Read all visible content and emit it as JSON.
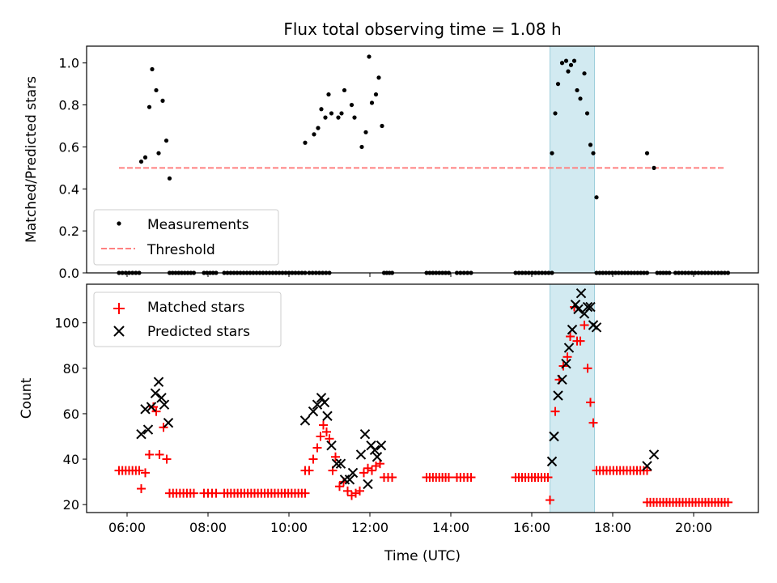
{
  "title": "Flux total observing time = 1.08 h",
  "highlight_color": "#add8e6",
  "chart_data": [
    {
      "type": "scatter",
      "ylabel": "Matched/Predicted stars",
      "xlim_hours": [
        5.0,
        21.6
      ],
      "ylim": [
        0,
        1.08
      ],
      "yticks": [
        "0.0",
        "0.2",
        "0.4",
        "0.6",
        "0.8",
        "1.0"
      ],
      "highlight_span_hours": [
        16.45,
        17.55
      ],
      "legend": {
        "placement": "lower left",
        "entries": [
          "Measurements",
          "Threshold"
        ]
      },
      "threshold": {
        "name": "Threshold",
        "value": 0.5,
        "x_range_hours": [
          5.8,
          20.8
        ],
        "color": "#ff8080"
      },
      "measurements": {
        "name": "Measurements",
        "color": "#000000",
        "points": [
          [
            6.35,
            0.53
          ],
          [
            6.45,
            0.55
          ],
          [
            6.55,
            0.79
          ],
          [
            6.62,
            0.97
          ],
          [
            6.72,
            0.87
          ],
          [
            6.78,
            0.57
          ],
          [
            6.88,
            0.82
          ],
          [
            6.97,
            0.63
          ],
          [
            7.05,
            0.45
          ],
          [
            10.4,
            0.62
          ],
          [
            10.62,
            0.66
          ],
          [
            10.72,
            0.69
          ],
          [
            10.8,
            0.78
          ],
          [
            10.9,
            0.74
          ],
          [
            10.98,
            0.85
          ],
          [
            11.05,
            0.76
          ],
          [
            11.22,
            0.74
          ],
          [
            11.3,
            0.76
          ],
          [
            11.37,
            0.87
          ],
          [
            11.55,
            0.8
          ],
          [
            11.62,
            0.74
          ],
          [
            11.8,
            0.6
          ],
          [
            11.9,
            0.67
          ],
          [
            11.98,
            1.03
          ],
          [
            12.05,
            0.81
          ],
          [
            12.15,
            0.85
          ],
          [
            12.22,
            0.93
          ],
          [
            12.3,
            0.7
          ],
          [
            16.5,
            0.57
          ],
          [
            16.58,
            0.76
          ],
          [
            16.65,
            0.9
          ],
          [
            16.75,
            1.0
          ],
          [
            16.85,
            1.01
          ],
          [
            16.9,
            0.96
          ],
          [
            16.97,
            0.99
          ],
          [
            17.05,
            1.01
          ],
          [
            17.12,
            0.87
          ],
          [
            17.2,
            0.83
          ],
          [
            17.3,
            0.95
          ],
          [
            17.37,
            0.76
          ],
          [
            17.45,
            0.61
          ],
          [
            17.52,
            0.57
          ],
          [
            17.6,
            0.36
          ],
          [
            18.85,
            0.57
          ],
          [
            19.02,
            0.5
          ]
        ],
        "zero_runs_hours": [
          [
            5.8,
            6.3
          ],
          [
            7.05,
            7.65
          ],
          [
            7.9,
            8.2
          ],
          [
            8.4,
            10.4
          ],
          [
            10.5,
            11.0
          ],
          [
            12.35,
            12.55
          ],
          [
            13.4,
            13.95
          ],
          [
            14.15,
            14.5
          ],
          [
            15.6,
            16.5
          ],
          [
            17.6,
            18.85
          ],
          [
            19.1,
            19.4
          ],
          [
            19.55,
            20.85
          ]
        ]
      }
    },
    {
      "type": "scatter",
      "xlabel": "Time (UTC)",
      "ylabel": "Count",
      "xlim_hours": [
        5.0,
        21.6
      ],
      "ylim": [
        16.5,
        117
      ],
      "yticks": [
        "20",
        "40",
        "60",
        "80",
        "100"
      ],
      "xticks": [
        {
          "hour": 6,
          "label": "06:00"
        },
        {
          "hour": 8,
          "label": "08:00"
        },
        {
          "hour": 10,
          "label": "10:00"
        },
        {
          "hour": 12,
          "label": "12:00"
        },
        {
          "hour": 14,
          "label": "14:00"
        },
        {
          "hour": 16,
          "label": "16:00"
        },
        {
          "hour": 18,
          "label": "18:00"
        },
        {
          "hour": 20,
          "label": "20:00"
        }
      ],
      "highlight_span_hours": [
        16.45,
        17.55
      ],
      "legend": {
        "placement": "upper left",
        "entries": [
          "Matched stars",
          "Predicted stars"
        ]
      },
      "matched": {
        "name": "Matched stars",
        "color": "#ff0000",
        "points": [
          [
            6.35,
            27
          ],
          [
            6.45,
            34
          ],
          [
            6.55,
            42
          ],
          [
            6.65,
            63
          ],
          [
            6.72,
            61
          ],
          [
            6.8,
            42
          ],
          [
            6.9,
            54
          ],
          [
            6.98,
            40
          ],
          [
            10.4,
            35
          ],
          [
            10.5,
            35
          ],
          [
            10.6,
            40
          ],
          [
            10.7,
            45
          ],
          [
            10.78,
            50
          ],
          [
            10.85,
            55
          ],
          [
            10.93,
            52
          ],
          [
            11.0,
            49
          ],
          [
            11.08,
            35
          ],
          [
            11.15,
            41
          ],
          [
            11.25,
            28
          ],
          [
            11.35,
            30
          ],
          [
            11.45,
            26
          ],
          [
            11.55,
            24
          ],
          [
            11.65,
            25
          ],
          [
            11.75,
            26
          ],
          [
            11.85,
            34
          ],
          [
            11.95,
            36
          ],
          [
            12.05,
            35
          ],
          [
            12.15,
            37
          ],
          [
            12.25,
            38
          ],
          [
            12.35,
            32
          ],
          [
            16.45,
            22
          ],
          [
            16.58,
            61
          ],
          [
            16.68,
            75
          ],
          [
            16.78,
            81
          ],
          [
            16.88,
            85
          ],
          [
            16.95,
            94
          ],
          [
            17.05,
            107
          ],
          [
            17.12,
            92
          ],
          [
            17.2,
            92
          ],
          [
            17.3,
            99
          ],
          [
            17.38,
            80
          ],
          [
            17.45,
            65
          ],
          [
            17.52,
            56
          ]
        ],
        "runs": [
          {
            "y": 35,
            "from_hour": 5.8,
            "to_hour": 6.3,
            "n": 7
          },
          {
            "y": 25,
            "from_hour": 7.05,
            "to_hour": 7.65,
            "n": 8
          },
          {
            "y": 25,
            "from_hour": 7.9,
            "to_hour": 8.2,
            "n": 4
          },
          {
            "y": 25,
            "from_hour": 8.4,
            "to_hour": 10.4,
            "n": 25
          },
          {
            "y": 32,
            "from_hour": 12.35,
            "to_hour": 12.55,
            "n": 3
          },
          {
            "y": 32,
            "from_hour": 13.4,
            "to_hour": 13.95,
            "n": 8
          },
          {
            "y": 32,
            "from_hour": 14.15,
            "to_hour": 14.5,
            "n": 5
          },
          {
            "y": 32,
            "from_hour": 15.6,
            "to_hour": 16.4,
            "n": 11
          },
          {
            "y": 35,
            "from_hour": 17.6,
            "to_hour": 18.85,
            "n": 16
          },
          {
            "y": 21,
            "from_hour": 18.85,
            "to_hour": 20.85,
            "n": 26
          }
        ]
      },
      "predicted": {
        "name": "Predicted stars",
        "color": "#000000",
        "points": [
          [
            6.35,
            51
          ],
          [
            6.45,
            62
          ],
          [
            6.52,
            53
          ],
          [
            6.6,
            63
          ],
          [
            6.7,
            69
          ],
          [
            6.78,
            74
          ],
          [
            6.85,
            67
          ],
          [
            6.92,
            64
          ],
          [
            7.02,
            56
          ],
          [
            10.4,
            57
          ],
          [
            10.6,
            61
          ],
          [
            10.7,
            64
          ],
          [
            10.8,
            67
          ],
          [
            10.88,
            65
          ],
          [
            10.95,
            59
          ],
          [
            11.05,
            46
          ],
          [
            11.18,
            38
          ],
          [
            11.28,
            38
          ],
          [
            11.38,
            31
          ],
          [
            11.5,
            31
          ],
          [
            11.58,
            34
          ],
          [
            11.78,
            42
          ],
          [
            11.88,
            51
          ],
          [
            11.95,
            29
          ],
          [
            12.03,
            46
          ],
          [
            12.12,
            44
          ],
          [
            12.18,
            41
          ],
          [
            12.28,
            46
          ],
          [
            16.5,
            39
          ],
          [
            16.55,
            50
          ],
          [
            16.65,
            68
          ],
          [
            16.75,
            75
          ],
          [
            16.85,
            82
          ],
          [
            16.92,
            89
          ],
          [
            17.0,
            97
          ],
          [
            17.08,
            108
          ],
          [
            17.15,
            106
          ],
          [
            17.22,
            113
          ],
          [
            17.3,
            104
          ],
          [
            17.38,
            107
          ],
          [
            17.45,
            107
          ],
          [
            17.52,
            99
          ],
          [
            17.6,
            98
          ],
          [
            18.85,
            37
          ],
          [
            19.02,
            42
          ]
        ]
      }
    }
  ]
}
